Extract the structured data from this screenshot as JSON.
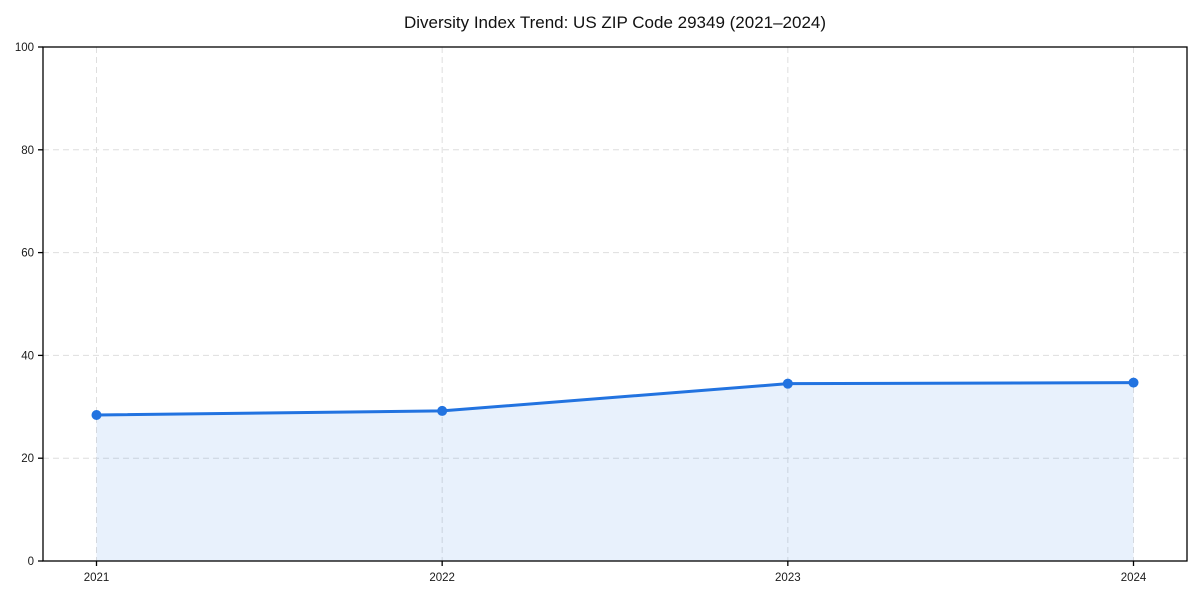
{
  "chart_data": {
    "type": "area",
    "title": "Diversity Index Trend: US ZIP Code 29349 (2021–2024)",
    "x": [
      2021,
      2022,
      2023,
      2024
    ],
    "xtick_labels": [
      "2021",
      "2022",
      "2023",
      "2024"
    ],
    "series": [
      {
        "name": "Diversity Index",
        "values": [
          28.4,
          29.2,
          34.5,
          34.7
        ]
      }
    ],
    "xlabel": "",
    "ylabel": "",
    "ylim": [
      0,
      100
    ],
    "yticks": [
      0,
      20,
      40,
      60,
      80,
      100
    ],
    "grid": "dashed-both",
    "legend": "none",
    "colors": {
      "line": "#2273e0",
      "marker": "#2273e0",
      "fill": "rgba(34,115,224,0.10)",
      "grid": "#dedede",
      "frame": "#000000",
      "tick_text": "#1a1a1a",
      "title_text": "#111111",
      "background": "#ffffff"
    }
  }
}
